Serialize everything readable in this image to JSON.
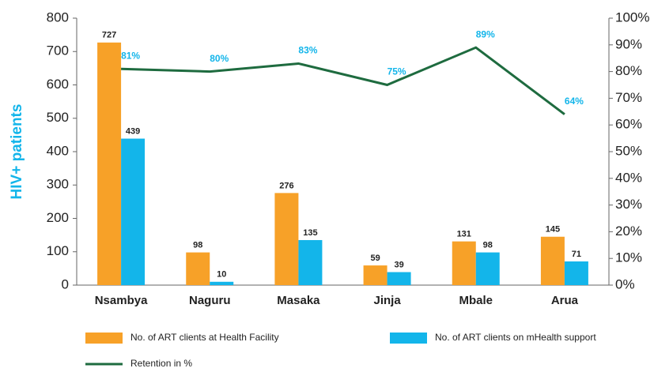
{
  "chart_data": {
    "type": "bar",
    "y_label": "HIV+ patients",
    "categories": [
      "Nsambya",
      "Naguru",
      "Masaka",
      "Jinja",
      "Mbale",
      "Arua"
    ],
    "series": [
      {
        "name": "No. of ART clients at Health Facility",
        "color": "#f7a128",
        "type": "bar",
        "values": [
          727,
          98,
          276,
          59,
          131,
          145
        ]
      },
      {
        "name": "No. of ART clients on mHealth support",
        "color": "#13b5ea",
        "type": "bar",
        "values": [
          439,
          10,
          135,
          39,
          98,
          71
        ]
      },
      {
        "name": "Retention in %",
        "color": "#1e6b3f",
        "type": "line",
        "axis": "y2",
        "values": [
          81,
          80,
          83,
          75,
          89,
          64
        ],
        "value_labels": [
          "81%",
          "80%",
          "83%",
          "75%",
          "89%",
          "64%"
        ]
      }
    ],
    "ylim": [
      0,
      800
    ],
    "yticks": [
      0,
      100,
      200,
      300,
      400,
      500,
      600,
      700,
      800
    ],
    "y2lim": [
      0,
      100
    ],
    "y2ticks": [
      {
        "value": 0,
        "label": "0%"
      },
      {
        "value": 10,
        "label": "10%"
      },
      {
        "value": 20,
        "label": "20%"
      },
      {
        "value": 30,
        "label": "30%"
      },
      {
        "value": 40,
        "label": "40%"
      },
      {
        "value": 50,
        "label": "50%"
      },
      {
        "value": 60,
        "label": "60%"
      },
      {
        "value": 70,
        "label": "70%"
      },
      {
        "value": 80,
        "label": "80%"
      },
      {
        "value": 90,
        "label": "90%"
      },
      {
        "value": 100,
        "label": "100%"
      }
    ]
  }
}
